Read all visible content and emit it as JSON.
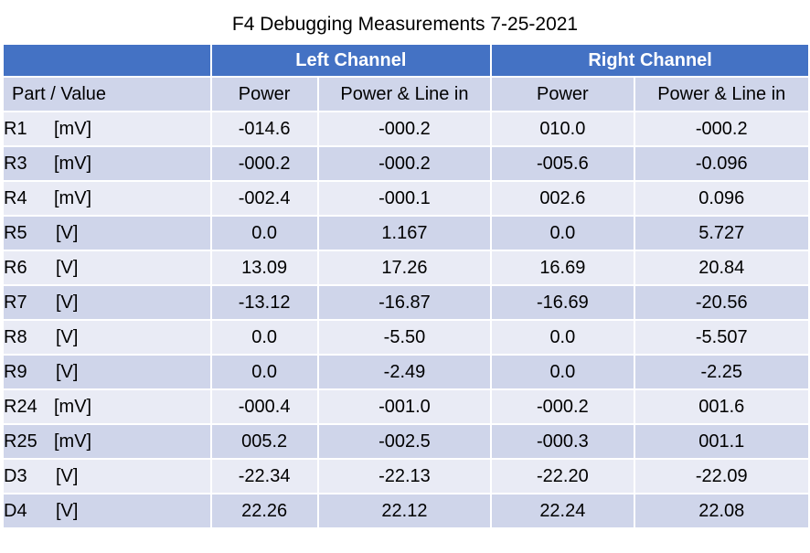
{
  "title": "F4 Debugging Measurements 7-25-2021",
  "header": {
    "left_channel": "Left Channel",
    "right_channel": "Right Channel"
  },
  "columns": [
    "Part / Value",
    "Power",
    "Power & Line in",
    "Power",
    "Power & Line in"
  ],
  "rows": [
    {
      "part": "R1",
      "unit": "[mV]",
      "values": [
        "-014.6",
        "-000.2",
        "010.0",
        "-000.2"
      ]
    },
    {
      "part": "R3",
      "unit": "[mV]",
      "values": [
        "-000.2",
        "-000.2",
        "-005.6",
        "-0.096"
      ]
    },
    {
      "part": "R4",
      "unit": "[mV]",
      "values": [
        "-002.4",
        "-000.1",
        "002.6",
        "0.096"
      ]
    },
    {
      "part": "R5",
      "unit": "[V]",
      "values": [
        "0.0",
        "1.167",
        "0.0",
        "5.727"
      ]
    },
    {
      "part": "R6",
      "unit": "[V]",
      "values": [
        "13.09",
        "17.26",
        "16.69",
        "20.84"
      ]
    },
    {
      "part": "R7",
      "unit": "[V]",
      "values": [
        "-13.12",
        "-16.87",
        "-16.69",
        "-20.56"
      ]
    },
    {
      "part": "R8",
      "unit": "[V]",
      "values": [
        "0.0",
        "-5.50",
        "0.0",
        "-5.507"
      ]
    },
    {
      "part": "R9",
      "unit": "[V]",
      "values": [
        "0.0",
        "-2.49",
        "0.0",
        "-2.25"
      ]
    },
    {
      "part": "R24",
      "unit": "[mV]",
      "values": [
        "-000.4",
        "-001.0",
        "-000.2",
        "001.6"
      ]
    },
    {
      "part": "R25",
      "unit": "[mV]",
      "values": [
        "005.2",
        "-002.5",
        "-000.3",
        "001.1"
      ]
    },
    {
      "part": "D3",
      "unit": "[V]",
      "values": [
        "-22.34",
        "-22.13",
        "-22.20",
        "-22.09"
      ]
    },
    {
      "part": "D4",
      "unit": "[V]",
      "values": [
        "22.26",
        "22.12",
        "22.24",
        "22.08"
      ]
    }
  ],
  "colors": {
    "header_bg": "#4472c4",
    "row_dark": "#cfd5ea",
    "row_light": "#e9ebf5"
  }
}
